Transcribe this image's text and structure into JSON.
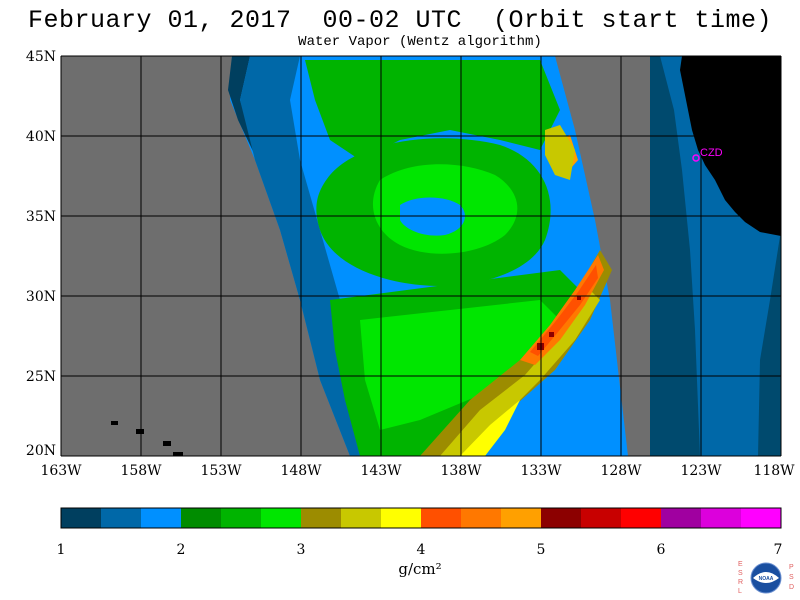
{
  "title": "February 01, 2017  00-02 UTC  (Orbit start time)",
  "subtitle": "Water Vapor (Wentz algorithm)",
  "lat_labels": [
    "45N",
    "40N",
    "35N",
    "30N",
    "25N",
    "20N"
  ],
  "lon_labels": [
    "163W",
    "158W",
    "153W",
    "148W",
    "143W",
    "138W",
    "133W",
    "128W",
    "123W",
    "118W"
  ],
  "station": {
    "label": "CZD",
    "color": "#ff00ff"
  },
  "colorbar": {
    "colors": [
      "#003f5f",
      "#0068a8",
      "#0090ff",
      "#008c00",
      "#00b400",
      "#00e600",
      "#9c8c00",
      "#c8c800",
      "#ffff00",
      "#ff5000",
      "#ff7800",
      "#ffa000",
      "#8c0000",
      "#c80000",
      "#ff0000",
      "#a000a0",
      "#dc00dc",
      "#ff00ff"
    ],
    "tick_labels": [
      "1",
      "2",
      "3",
      "4",
      "5",
      "6",
      "7"
    ],
    "unit": "g/cm²"
  },
  "logo": {
    "left_text": "ESRL",
    "right_text": "PSD",
    "center": "NOAA"
  },
  "colors": {
    "land": "#000000",
    "no_data": "#6e6e6e",
    "ocean_low": "#003f5f"
  }
}
